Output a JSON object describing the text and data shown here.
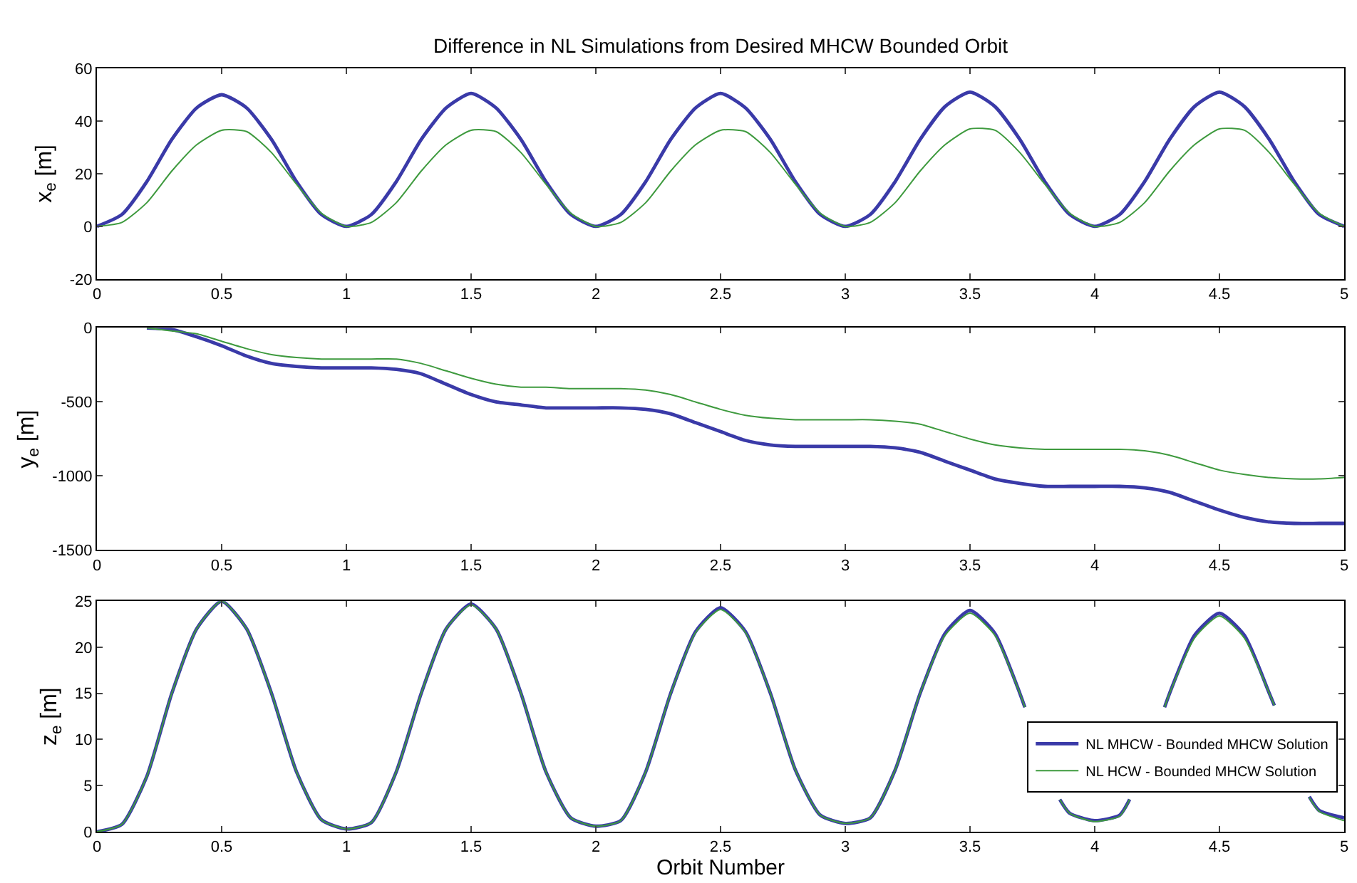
{
  "chart_data": [
    {
      "type": "line",
      "title": "Difference in NL Simulations from Desired MHCW Bounded Orbit",
      "ylabel": "x$_{e}$ [m]",
      "x": [
        0,
        0.1,
        0.2,
        0.3,
        0.4,
        0.5,
        0.6,
        0.7,
        0.8,
        0.9,
        1,
        1.1,
        1.2,
        1.3,
        1.4,
        1.5,
        1.6,
        1.7,
        1.8,
        1.9,
        2,
        2.1,
        2.2,
        2.3,
        2.4,
        2.5,
        2.6,
        2.7,
        2.8,
        2.9,
        3,
        3.1,
        3.2,
        3.3,
        3.4,
        3.5,
        3.6,
        3.7,
        3.8,
        3.9,
        4,
        4.1,
        4.2,
        4.3,
        4.4,
        4.5,
        4.6,
        4.7,
        4.8,
        4.9,
        5
      ],
      "xlim": [
        0,
        5
      ],
      "xticks": [
        0,
        0.5,
        1,
        1.5,
        2,
        2.5,
        3,
        3.5,
        4,
        4.5,
        5
      ],
      "ylim": [
        -20,
        60
      ],
      "yticks": [
        -20,
        0,
        20,
        40,
        60
      ],
      "grid": false,
      "legend": false,
      "series": [
        {
          "color": "#3a3aa8",
          "values": [
            0,
            4.5,
            17,
            33,
            45,
            50,
            45,
            33,
            17,
            4.5,
            0,
            4.5,
            17,
            33,
            45,
            50.5,
            45,
            33,
            17,
            4.5,
            0,
            4.5,
            17,
            33,
            45,
            50.5,
            45,
            33,
            17,
            4.5,
            0,
            4.5,
            17,
            33,
            45.5,
            51,
            45.5,
            33,
            17,
            4.5,
            0,
            4.5,
            17,
            33,
            45.5,
            51,
            45.5,
            33,
            17,
            4.5,
            0
          ]
        },
        {
          "color": "#3e9a3e",
          "values": [
            0,
            1.5,
            9,
            21,
            31,
            36.5,
            36,
            28,
            16,
            5,
            0,
            1.5,
            9,
            21,
            31,
            36.5,
            36,
            28,
            16,
            5,
            0,
            1.5,
            9,
            21,
            31,
            36.5,
            36,
            28,
            16,
            5,
            0,
            1.5,
            9,
            21,
            31,
            37,
            36.5,
            28,
            16,
            5,
            0,
            1.5,
            9,
            21,
            31,
            37,
            36.5,
            28,
            16,
            5,
            0
          ]
        }
      ]
    },
    {
      "type": "line",
      "ylabel": "y$_{e}$ [m]",
      "x": [
        0.2,
        0.3,
        0.4,
        0.5,
        0.6,
        0.7,
        0.8,
        0.9,
        1,
        1.1,
        1.2,
        1.3,
        1.4,
        1.5,
        1.6,
        1.7,
        1.8,
        1.9,
        2,
        2.1,
        2.2,
        2.3,
        2.4,
        2.5,
        2.6,
        2.7,
        2.8,
        2.9,
        3,
        3.1,
        3.2,
        3.3,
        3.4,
        3.5,
        3.6,
        3.7,
        3.8,
        3.9,
        4,
        4.1,
        4.2,
        4.3,
        4.4,
        4.5,
        4.6,
        4.7,
        4.8,
        4.9,
        5
      ],
      "xlim": [
        0,
        5
      ],
      "xticks": [
        0,
        0.5,
        1,
        1.5,
        2,
        2.5,
        3,
        3.5,
        4,
        4.5,
        5
      ],
      "ylim": [
        -1500,
        0
      ],
      "yticks": [
        -1500,
        -1000,
        -500,
        0
      ],
      "grid": false,
      "legend": false,
      "series": [
        {
          "color": "#3a3aa8",
          "values": [
            0,
            -10,
            -60,
            -120,
            -190,
            -240,
            -260,
            -270,
            -270,
            -270,
            -280,
            -310,
            -380,
            -450,
            -500,
            -520,
            -540,
            -540,
            -540,
            -540,
            -550,
            -580,
            -640,
            -700,
            -760,
            -790,
            -800,
            -800,
            -800,
            -800,
            -810,
            -840,
            -900,
            -960,
            -1020,
            -1050,
            -1070,
            -1070,
            -1070,
            -1070,
            -1080,
            -1110,
            -1170,
            -1230,
            -1280,
            -1310,
            -1320,
            -1320,
            -1320
          ]
        },
        {
          "color": "#3e9a3e",
          "values": [
            0,
            -20,
            -40,
            -90,
            -140,
            -180,
            -200,
            -210,
            -210,
            -210,
            -210,
            -240,
            -290,
            -340,
            -380,
            -400,
            -400,
            -410,
            -410,
            -410,
            -420,
            -450,
            -500,
            -550,
            -590,
            -610,
            -620,
            -620,
            -620,
            -620,
            -630,
            -650,
            -700,
            -750,
            -790,
            -810,
            -820,
            -820,
            -820,
            -820,
            -830,
            -860,
            -910,
            -960,
            -990,
            -1010,
            -1020,
            -1020,
            -1010
          ]
        }
      ]
    },
    {
      "type": "line",
      "xlabel": "Orbit Number",
      "ylabel": "z$_{e}$ [m]",
      "x": [
        0,
        0.1,
        0.2,
        0.3,
        0.4,
        0.5,
        0.6,
        0.7,
        0.8,
        0.9,
        1,
        1.1,
        1.2,
        1.3,
        1.4,
        1.5,
        1.6,
        1.7,
        1.8,
        1.9,
        2,
        2.1,
        2.2,
        2.3,
        2.4,
        2.5,
        2.6,
        2.7,
        2.8,
        2.9,
        3,
        3.1,
        3.2,
        3.3,
        3.4,
        3.5,
        3.6,
        3.7,
        3.72,
        3.8,
        3.86,
        3.9,
        4,
        4.1,
        4.14,
        4.2,
        4.28,
        4.3,
        4.4,
        4.5,
        4.6,
        4.7,
        4.72,
        4.8,
        4.86,
        4.9,
        5
      ],
      "xlim": [
        0,
        5
      ],
      "xticks": [
        0,
        0.5,
        1,
        1.5,
        2,
        2.5,
        3,
        3.5,
        4,
        4.5,
        5
      ],
      "ylim": [
        0,
        25
      ],
      "yticks": [
        0,
        5,
        10,
        15,
        20,
        25
      ],
      "grid": false,
      "legend": "bottom right",
      "series": [
        {
          "name": "NL MHCW - Bounded MHCW Solution",
          "color": "#3a3aa8",
          "values": [
            0,
            0.8,
            6,
            15,
            22,
            25,
            22,
            15,
            6.5,
            1.3,
            0.3,
            1,
            6.5,
            15,
            22,
            24.7,
            22,
            15,
            6.5,
            1.5,
            0.6,
            1.2,
            6.5,
            15,
            21.7,
            24.3,
            21.7,
            15,
            6.7,
            1.8,
            0.9,
            1.5,
            6.7,
            15,
            21.5,
            24,
            21.5,
            15,
            13.5,
            null,
            3.5,
            2,
            1.2,
            1.8,
            3.5,
            null,
            13.5,
            15,
            21.3,
            23.7,
            21.3,
            15,
            13.7,
            null,
            3.8,
            2.3,
            1.5
          ]
        },
        {
          "name": "NL HCW - Bounded MHCW Solution",
          "color": "#3e9a3e",
          "values": [
            0,
            0.8,
            6,
            15,
            22,
            25,
            22,
            15,
            6.5,
            1.3,
            0.3,
            1,
            6.5,
            15,
            22,
            24.6,
            22,
            15,
            6.5,
            1.5,
            0.6,
            1.2,
            6.5,
            15,
            21.6,
            24.1,
            21.6,
            15,
            6.7,
            1.8,
            0.9,
            1.5,
            6.7,
            15,
            21.3,
            23.7,
            21.3,
            15,
            13.5,
            null,
            3.5,
            2,
            1.1,
            1.7,
            3.5,
            null,
            13.5,
            15,
            21,
            23.4,
            21,
            15,
            13.7,
            null,
            3.7,
            2.2,
            1.2
          ]
        }
      ]
    }
  ]
}
